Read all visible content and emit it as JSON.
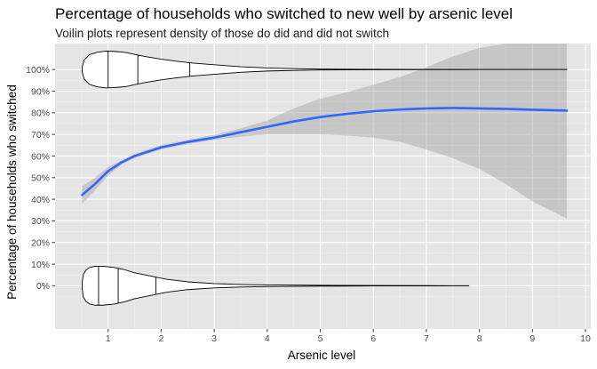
{
  "chart_data": {
    "type": "line",
    "title": "Percentage of households who switched to new well by arsenic level",
    "subtitle": "Voilin plots represent density of those do did and did not switch",
    "xlabel": "Arsenic level",
    "ylabel": "Percentage of households who switched",
    "xlim": [
      0.0,
      10.1
    ],
    "ylim": [
      -0.2,
      1.12
    ],
    "x_ticks": [
      1,
      2,
      3,
      4,
      5,
      6,
      7,
      8,
      9,
      10
    ],
    "y_ticks": [
      0,
      0.1,
      0.2,
      0.3,
      0.4,
      0.5,
      0.6,
      0.7,
      0.8,
      0.9,
      1.0
    ],
    "y_tick_labels": [
      "0%",
      "10%",
      "20%",
      "30%",
      "40%",
      "50%",
      "60%",
      "70%",
      "80%",
      "90%",
      "100%"
    ],
    "grid": true,
    "background": "#e5e5e5",
    "series": [
      {
        "kind": "smooth",
        "color": "#3366ff",
        "x": [
          0.51,
          0.75,
          1.0,
          1.25,
          1.5,
          2.0,
          2.5,
          3.0,
          3.5,
          4.0,
          4.5,
          5.0,
          5.5,
          6.0,
          6.5,
          7.0,
          7.5,
          8.0,
          8.5,
          9.0,
          9.65
        ],
        "y": [
          0.42,
          0.47,
          0.53,
          0.57,
          0.6,
          0.64,
          0.665,
          0.685,
          0.71,
          0.735,
          0.76,
          0.78,
          0.795,
          0.807,
          0.815,
          0.82,
          0.822,
          0.82,
          0.818,
          0.814,
          0.81
        ],
        "ci_low": [
          0.38,
          0.44,
          0.51,
          0.56,
          0.59,
          0.63,
          0.655,
          0.675,
          0.69,
          0.7,
          0.7,
          0.7,
          0.695,
          0.685,
          0.665,
          0.63,
          0.59,
          0.54,
          0.47,
          0.39,
          0.31
        ],
        "ci_high": [
          0.46,
          0.5,
          0.55,
          0.58,
          0.61,
          0.65,
          0.675,
          0.698,
          0.728,
          0.765,
          0.82,
          0.865,
          0.895,
          0.93,
          0.965,
          1.01,
          1.06,
          1.1,
          1.12,
          1.12,
          1.12
        ]
      },
      {
        "kind": "violin",
        "group": 1,
        "color": "#000000",
        "x": [
          0.51,
          0.55,
          0.65,
          0.8,
          0.95,
          1.1,
          1.2,
          1.35,
          1.5,
          1.7,
          2.0,
          2.3,
          2.6,
          3.0,
          3.5,
          4.0,
          4.5,
          5.0,
          6.0,
          7.0,
          8.0,
          9.0,
          9.65
        ],
        "half_width": [
          0.01,
          0.045,
          0.069,
          0.08,
          0.085,
          0.084,
          0.082,
          0.078,
          0.07,
          0.06,
          0.048,
          0.038,
          0.03,
          0.022,
          0.013,
          0.007,
          0.004,
          0.002,
          0.0008,
          0.0004,
          0.0002,
          0.0002,
          0.0002
        ],
        "quantile_lines": [
          1.0,
          1.56,
          2.54
        ]
      },
      {
        "kind": "violin",
        "group": 0,
        "color": "#000000",
        "x": [
          0.51,
          0.53,
          0.58,
          0.65,
          0.75,
          0.9,
          1.1,
          1.3,
          1.5,
          1.8,
          2.1,
          2.5,
          3.0,
          3.5,
          4.0,
          5.0,
          6.0,
          7.0,
          7.8
        ],
        "half_width": [
          0.01,
          0.05,
          0.072,
          0.084,
          0.09,
          0.09,
          0.085,
          0.075,
          0.06,
          0.045,
          0.03,
          0.018,
          0.01,
          0.006,
          0.004,
          0.002,
          0.001,
          0.0005,
          0.0003
        ],
        "quantile_lines": [
          0.82,
          1.19,
          1.9
        ]
      }
    ]
  }
}
